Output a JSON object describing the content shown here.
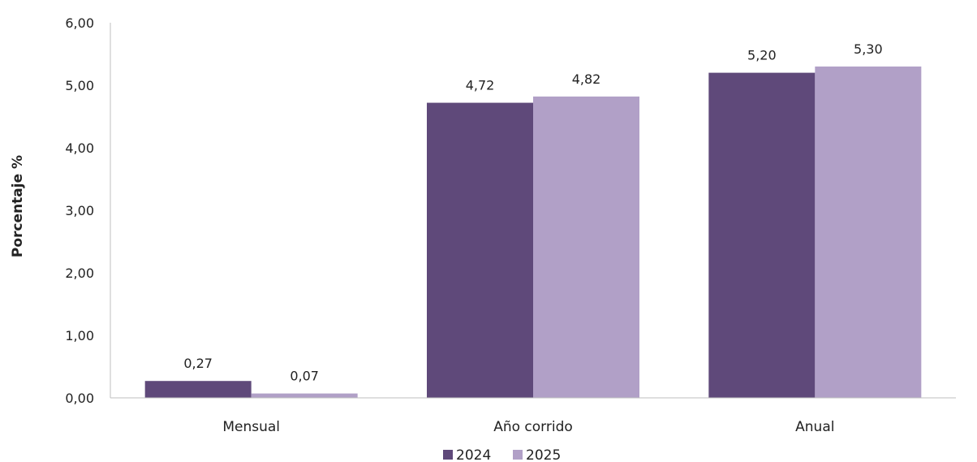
{
  "chart_data": {
    "type": "bar",
    "title": "",
    "xlabel": "",
    "ylabel": "Porcentaje %",
    "categories": [
      "Mensual",
      "Año corrido",
      "Anual"
    ],
    "series": [
      {
        "name": "2024",
        "values": [
          0.27,
          4.72,
          5.2
        ],
        "labels": [
          "0,27",
          "4,72",
          "5,20"
        ],
        "color": "#5f497a"
      },
      {
        "name": "2025",
        "values": [
          0.07,
          4.82,
          5.3
        ],
        "labels": [
          "0,07",
          "4,82",
          "5,30"
        ],
        "color": "#b1a0c7"
      }
    ],
    "ylim": [
      0,
      6
    ],
    "yticks": [
      0,
      1,
      2,
      3,
      4,
      5,
      6
    ],
    "ytick_labels": [
      "0,00",
      "1,00",
      "2,00",
      "3,00",
      "4,00",
      "5,00",
      "6,00"
    ],
    "grid": false,
    "legend": "bottom-center"
  }
}
